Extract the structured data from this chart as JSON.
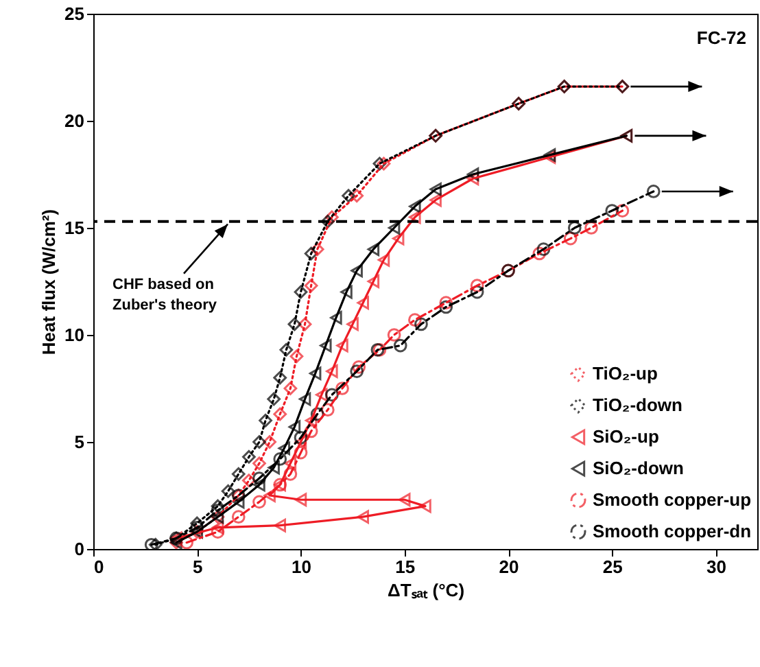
{
  "chart_data": {
    "type": "line",
    "xlabel": "ΔTₛₐₜ (°C)",
    "ylabel": "Heat flux (W/cm²)",
    "xlim": [
      0,
      32
    ],
    "ylim": [
      0,
      25
    ],
    "xticks": [
      0,
      5,
      10,
      15,
      20,
      25,
      30
    ],
    "yticks": [
      0,
      5,
      10,
      15,
      20,
      25
    ],
    "grid": false,
    "legend": "bottom right",
    "annotations": [
      "FC-72"
    ],
    "ref_lines": [
      {
        "axis": "y",
        "value": 15.3,
        "label": "CHF based on Zuber's theory",
        "line_style": "dashed",
        "color": "#000000"
      }
    ],
    "series": [
      {
        "name": "TiO₂-up",
        "color": "#ee1c25",
        "marker": "diamond",
        "line_style": "dotted",
        "x": [
          4,
          5,
          6,
          7,
          7.5,
          8,
          8.5,
          9,
          9.5,
          9.8,
          10.2,
          10.5,
          10.8,
          11.5,
          12.7,
          14,
          16.5,
          20.5,
          22.7,
          25.5
        ],
        "values": [
          0.3,
          0.8,
          1.5,
          2.5,
          3.2,
          4,
          5,
          6.3,
          7.5,
          9,
          10.5,
          12.3,
          14,
          15.5,
          16.5,
          18,
          19.3,
          20.8,
          21.6,
          21.6
        ]
      },
      {
        "name": "TiO₂-down",
        "color": "#000000",
        "marker": "diamond",
        "line_style": "dotted",
        "x": [
          3,
          4,
          5,
          6,
          6.5,
          7,
          7.5,
          8,
          8.3,
          8.7,
          9,
          9.3,
          9.7,
          10,
          10.5,
          11.3,
          12.3,
          13.8,
          16.5,
          20.5,
          22.7,
          25.5
        ],
        "values": [
          0.2,
          0.5,
          1.2,
          2,
          2.7,
          3.5,
          4.3,
          5,
          6,
          7,
          8,
          9.3,
          10.5,
          12,
          13.8,
          15.3,
          16.5,
          18,
          19.3,
          20.8,
          21.6,
          21.6
        ]
      },
      {
        "name": "SiO₂-up",
        "color": "#ee1c25",
        "marker": "triangle",
        "line_style": "solid",
        "x": [
          4,
          6,
          9,
          13,
          16,
          15,
          10,
          8.5,
          9,
          9.5,
          10,
          10.5,
          11,
          11.5,
          12,
          12.5,
          13,
          13.5,
          14,
          14.7,
          15.5,
          16.5,
          18.3,
          22,
          25.7
        ],
        "values": [
          0.5,
          1,
          1.1,
          1.5,
          2,
          2.3,
          2.3,
          2.5,
          3,
          4,
          5,
          6,
          7.2,
          8.3,
          9.5,
          10.5,
          11.5,
          12.5,
          13.5,
          14.5,
          15.5,
          16.3,
          17.3,
          18.3,
          19.3
        ]
      },
      {
        "name": "SiO₂-down",
        "color": "#000000",
        "marker": "triangle",
        "line_style": "solid",
        "x": [
          4,
          5,
          6,
          7,
          8,
          8.7,
          9.2,
          9.7,
          10.2,
          10.7,
          11.2,
          11.7,
          12.2,
          12.7,
          13.5,
          14.5,
          15.5,
          16.5,
          18.3,
          22,
          25.7
        ],
        "values": [
          0.3,
          0.8,
          1.5,
          2.2,
          3,
          3.8,
          4.7,
          5.7,
          7,
          8.2,
          9.5,
          10.8,
          12,
          13,
          14,
          15,
          16,
          16.8,
          17.5,
          18.4,
          19.3
        ]
      },
      {
        "name": "Smooth copper-up",
        "color": "#ee1c25",
        "marker": "circle",
        "line_style": "dashed",
        "x": [
          4.5,
          6,
          7,
          8,
          9,
          9.5,
          10,
          10.5,
          11.3,
          12,
          12.8,
          13.8,
          14.5,
          15.5,
          17,
          18.5,
          20,
          21.5,
          23,
          24,
          25.5
        ],
        "values": [
          0.3,
          0.8,
          1.5,
          2.2,
          3,
          3.5,
          4.5,
          5.5,
          6.5,
          7.5,
          8.5,
          9.3,
          10,
          10.7,
          11.5,
          12.3,
          13,
          13.8,
          14.5,
          15,
          15.8
        ]
      },
      {
        "name": "Smooth copper-dn",
        "color": "#000000",
        "marker": "circle",
        "line_style": "dashed",
        "x": [
          2.8,
          4,
          5,
          6,
          7,
          8,
          9,
          10,
          10.8,
          11.5,
          12.7,
          13.7,
          14.8,
          15.8,
          17,
          18.5,
          20,
          21.7,
          23.2,
          25,
          27
        ],
        "values": [
          0.2,
          0.5,
          1,
          1.8,
          2.5,
          3.3,
          4.2,
          5.2,
          6.3,
          7.2,
          8.3,
          9.3,
          9.5,
          10.5,
          11.3,
          12,
          13,
          14,
          15,
          15.8,
          16.7
        ]
      }
    ]
  }
}
